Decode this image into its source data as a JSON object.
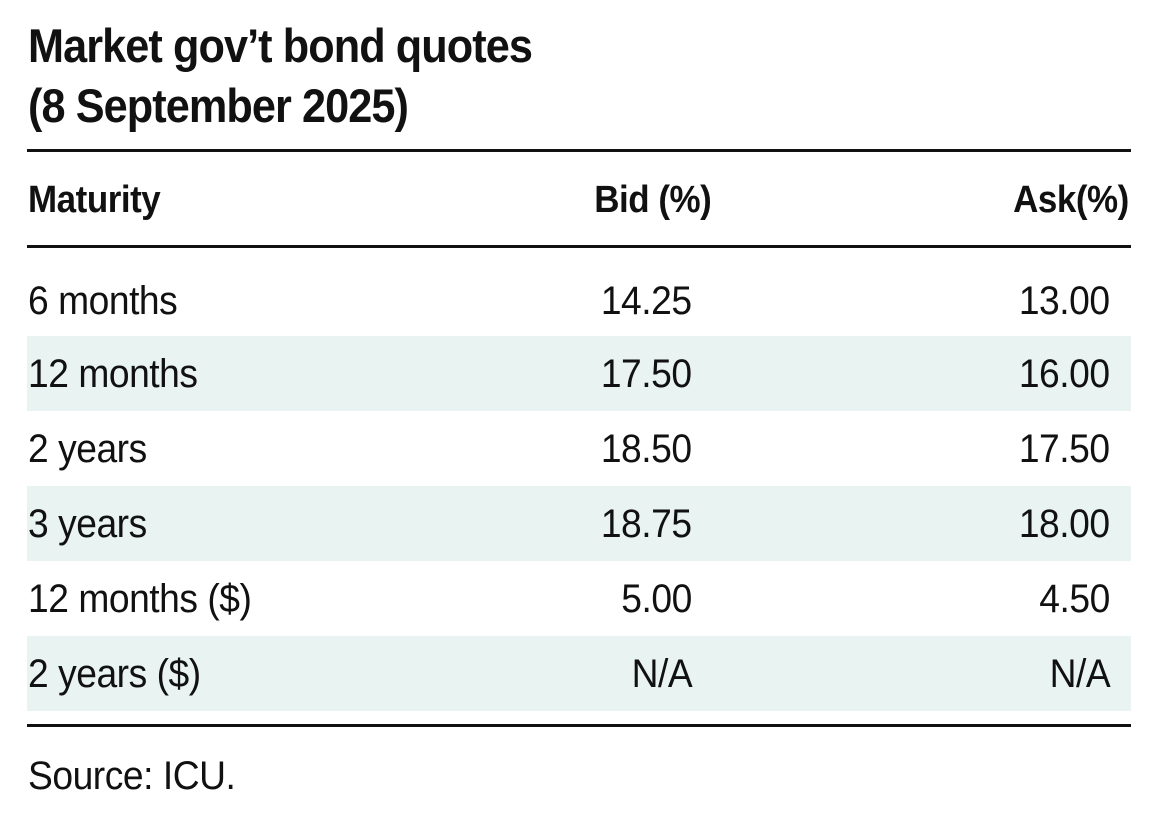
{
  "title": {
    "line1": "Market gov’t bond quotes",
    "line2": "(8 September 2025)"
  },
  "columns": {
    "maturity": "Maturity",
    "bid": "Bid (%)",
    "ask": "Ask(%)"
  },
  "rows": [
    {
      "maturity": "6 months",
      "bid": "14.25",
      "ask": "13.00"
    },
    {
      "maturity": "12 months",
      "bid": "17.50",
      "ask": "16.00"
    },
    {
      "maturity": "2 years",
      "bid": "18.50",
      "ask": "17.50"
    },
    {
      "maturity": "3 years",
      "bid": "18.75",
      "ask": "18.00"
    },
    {
      "maturity": "12 months ($)",
      "bid": "5.00",
      "ask": "4.50"
    },
    {
      "maturity": "2 years ($)",
      "bid": "N/A",
      "ask": "N/A"
    }
  ],
  "source": "Source: ICU.",
  "colors": {
    "shaded_row": "#e8f3f2",
    "rule": "#111111"
  },
  "chart_data": {
    "type": "table",
    "title": "Market gov’t bond quotes (8 September 2025)",
    "columns": [
      "Maturity",
      "Bid (%)",
      "Ask(%)"
    ],
    "rows": [
      [
        "6 months",
        14.25,
        13.0
      ],
      [
        "12 months",
        17.5,
        16.0
      ],
      [
        "2 years",
        18.5,
        17.5
      ],
      [
        "3 years",
        18.75,
        18.0
      ],
      [
        "12 months ($)",
        5.0,
        4.5
      ],
      [
        "2 years ($)",
        "N/A",
        "N/A"
      ]
    ],
    "source": "Source: ICU."
  }
}
